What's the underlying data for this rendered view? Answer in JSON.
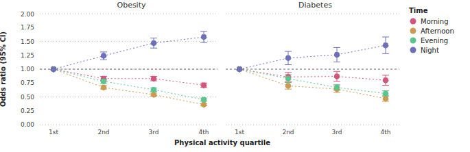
{
  "chart_data": [
    {
      "type": "line",
      "title": "Obesity",
      "x_label": "Physical activity quartile",
      "y_label": "Odds ratio (95% CI)",
      "legend_title": "Time",
      "categories": [
        "1st",
        "2nd",
        "3rd",
        "4th"
      ],
      "ylim": [
        0,
        2
      ],
      "yticks": [
        {
          "value": 0,
          "label": "0.00"
        },
        {
          "value": 0.25,
          "label": "0.25"
        },
        {
          "value": 0.5,
          "label": "0.50"
        },
        {
          "value": 0.75,
          "label": "0.75"
        },
        {
          "value": 1,
          "label": "1.00"
        },
        {
          "value": 1.25,
          "label": "1.25"
        },
        {
          "value": 1.5,
          "label": "1.50"
        },
        {
          "value": 1.75,
          "label": "1.75"
        },
        {
          "value": 2,
          "label": "2.00"
        }
      ],
      "grid": true,
      "legend": "right",
      "marker": "circle",
      "line_style": "dotted",
      "reference_line": 1,
      "series": [
        {
          "name": "Morning",
          "color": "#d1577a",
          "values": [
            1,
            0.83,
            0.83,
            0.71
          ],
          "error": [
            0,
            0.04,
            0.04,
            0.04
          ]
        },
        {
          "name": "Afternoon",
          "color": "#c99a52",
          "values": [
            1,
            0.67,
            0.54,
            0.36
          ],
          "error": [
            0,
            0.03,
            0.03,
            0.02
          ]
        },
        {
          "name": "Evening",
          "color": "#5dc38f",
          "values": [
            1,
            0.78,
            0.63,
            0.45
          ],
          "error": [
            0,
            0.04,
            0.03,
            0.03
          ]
        },
        {
          "name": "Night",
          "color": "#6f6fb8",
          "values": [
            1,
            1.24,
            1.47,
            1.58
          ],
          "error": [
            0,
            0.07,
            0.09,
            0.1
          ]
        }
      ]
    },
    {
      "type": "line",
      "title": "Diabetes",
      "tick_labels": "x",
      "categories": [
        "1st",
        "2nd",
        "3rd",
        "4th"
      ],
      "ylim": [
        0,
        2
      ],
      "yticks": [
        {
          "value": 0,
          "label": "0.00"
        },
        {
          "value": 0.25,
          "label": "0.25"
        },
        {
          "value": 0.5,
          "label": "0.50"
        },
        {
          "value": 0.75,
          "label": "0.75"
        },
        {
          "value": 1,
          "label": "1.00"
        },
        {
          "value": 1.25,
          "label": "1.25"
        },
        {
          "value": 1.5,
          "label": "1.50"
        },
        {
          "value": 1.75,
          "label": "1.75"
        },
        {
          "value": 2,
          "label": "2.00"
        }
      ],
      "grid": true,
      "marker": "circle",
      "line_style": "dotted",
      "reference_line": 1,
      "series": [
        {
          "name": "Morning",
          "color": "#d1577a",
          "values": [
            1,
            0.86,
            0.87,
            0.8
          ],
          "error": [
            0,
            0.08,
            0.09,
            0.09
          ]
        },
        {
          "name": "Afternoon",
          "color": "#c99a52",
          "values": [
            1,
            0.7,
            0.64,
            0.47
          ],
          "error": [
            0,
            0.06,
            0.06,
            0.05
          ]
        },
        {
          "name": "Evening",
          "color": "#5dc38f",
          "values": [
            1,
            0.83,
            0.67,
            0.56
          ],
          "error": [
            0,
            0.07,
            0.05,
            0.05
          ]
        },
        {
          "name": "Night",
          "color": "#6f6fb8",
          "values": [
            1,
            1.2,
            1.26,
            1.43
          ],
          "error": [
            0,
            0.12,
            0.13,
            0.15
          ]
        }
      ]
    }
  ]
}
